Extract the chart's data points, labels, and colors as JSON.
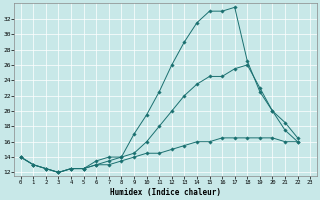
{
  "title": "",
  "xlabel": "Humidex (Indice chaleur)",
  "ylabel": "",
  "bg_color": "#c8e8e8",
  "grid_color": "#ffffff",
  "line_color": "#1a7070",
  "xlim": [
    -0.5,
    23.5
  ],
  "ylim": [
    11.5,
    34
  ],
  "yticks": [
    12,
    14,
    16,
    18,
    20,
    22,
    24,
    26,
    28,
    30,
    32
  ],
  "xticks": [
    0,
    1,
    2,
    3,
    4,
    5,
    6,
    7,
    8,
    9,
    10,
    11,
    12,
    13,
    14,
    15,
    16,
    17,
    18,
    19,
    20,
    21,
    22,
    23
  ],
  "line1_x": [
    0,
    1,
    2,
    3,
    4,
    5,
    6,
    7,
    8,
    9,
    10,
    11,
    12,
    13,
    14,
    15,
    16,
    17,
    18,
    19,
    20,
    21,
    22
  ],
  "line1_y": [
    14.0,
    13.0,
    12.5,
    12.0,
    12.5,
    12.5,
    13.5,
    14.0,
    14.0,
    17.0,
    19.5,
    22.5,
    26.0,
    29.0,
    31.5,
    33.0,
    33.0,
    33.5,
    26.5,
    22.5,
    20.0,
    17.5,
    16.0
  ],
  "line2_x": [
    0,
    1,
    2,
    3,
    4,
    5,
    6,
    7,
    8,
    9,
    10,
    11,
    12,
    13,
    14,
    15,
    16,
    17,
    18,
    19,
    20,
    21,
    22
  ],
  "line2_y": [
    14.0,
    13.0,
    12.5,
    12.0,
    12.5,
    12.5,
    13.0,
    13.5,
    14.0,
    14.5,
    16.0,
    18.0,
    20.0,
    22.0,
    23.5,
    24.5,
    24.5,
    25.5,
    26.0,
    23.0,
    20.0,
    18.5,
    16.5
  ],
  "line3_x": [
    0,
    1,
    2,
    3,
    4,
    5,
    6,
    7,
    8,
    9,
    10,
    11,
    12,
    13,
    14,
    15,
    16,
    17,
    18,
    19,
    20,
    21,
    22
  ],
  "line3_y": [
    14.0,
    13.0,
    12.5,
    12.0,
    12.5,
    12.5,
    13.0,
    13.0,
    13.5,
    14.0,
    14.5,
    14.5,
    15.0,
    15.5,
    16.0,
    16.0,
    16.5,
    16.5,
    16.5,
    16.5,
    16.5,
    16.0,
    16.0
  ]
}
